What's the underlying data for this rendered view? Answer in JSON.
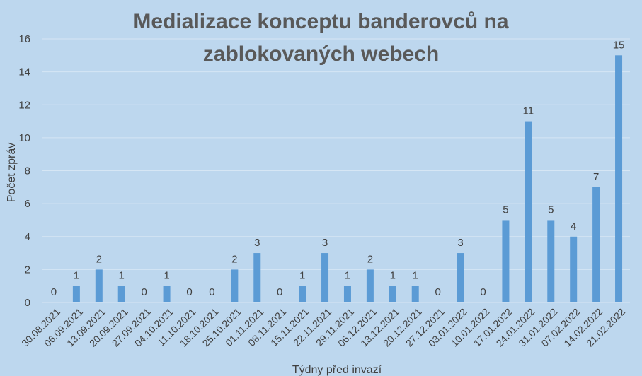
{
  "chart_data": {
    "type": "bar",
    "title_lines": [
      "Medializace konceptu banderovců na",
      "zablokovaných webech"
    ],
    "xlabel": "Týdny před invazí",
    "ylabel": "Počet zpráv",
    "ylim": [
      0,
      16
    ],
    "yticks": [
      0,
      2,
      4,
      6,
      8,
      10,
      12,
      14,
      16
    ],
    "grid": true,
    "categories": [
      "30.08.2021",
      "06.09.2021",
      "13.09.2021",
      "20.09.2021",
      "27.09.2021",
      "04.10.2021",
      "11.10.2021",
      "18.10.2021",
      "25.10.2021",
      "01.11.2021",
      "08.11.2021",
      "15.11.2021",
      "22.11.2021",
      "29.11.2021",
      "06.12.2021",
      "13.12.2021",
      "20.12.2021",
      "27.12.2021",
      "03.01.2022",
      "10.01.2022",
      "17.01.2022",
      "24.01.2022",
      "31.01.2022",
      "07.02.2022",
      "14.02.2022",
      "21.02.2022"
    ],
    "values": [
      0,
      1,
      2,
      1,
      0,
      1,
      0,
      0,
      2,
      3,
      0,
      1,
      3,
      1,
      2,
      1,
      1,
      0,
      3,
      0,
      5,
      11,
      5,
      4,
      7,
      15
    ],
    "bar_color": "#5b9bd5",
    "background": "#bdd7ee"
  }
}
